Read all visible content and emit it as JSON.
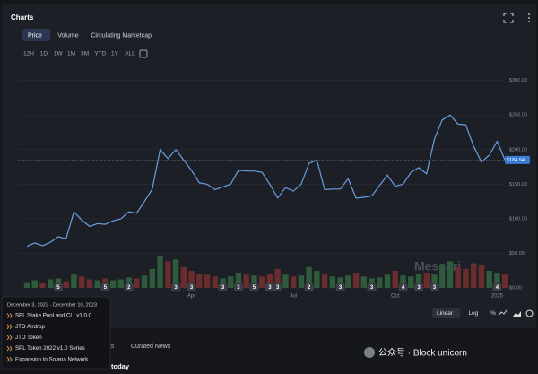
{
  "header": {
    "title": "Charts"
  },
  "tabs": [
    "Price",
    "Volume",
    "Circulating Marketcap"
  ],
  "ranges": [
    "12H",
    "1D",
    "1W",
    "1M",
    "3M",
    "YTD",
    "1Y",
    "ALL"
  ],
  "chart_data": {
    "type": "line",
    "categories": [
      null,
      null,
      null,
      null,
      null,
      null,
      null,
      null,
      null,
      null,
      null,
      null,
      null,
      null,
      null,
      null,
      null,
      null,
      null,
      null,
      null,
      "Apr",
      null,
      null,
      null,
      null,
      null,
      null,
      null,
      null,
      null,
      null,
      null,
      null,
      "Jul",
      null,
      null,
      null,
      null,
      null,
      null,
      null,
      null,
      null,
      null,
      null,
      null,
      "Oct",
      null,
      null,
      null,
      null,
      null,
      null,
      null,
      null,
      null,
      null,
      null,
      null,
      "2025",
      null
    ],
    "values": [
      60,
      65,
      61,
      66,
      74,
      71,
      110,
      98,
      89,
      93,
      92,
      97,
      100,
      110,
      108,
      125,
      143,
      200,
      187,
      200,
      185,
      170,
      152,
      150,
      142,
      146,
      150,
      170,
      169,
      169,
      167,
      150,
      130,
      145,
      140,
      150,
      180,
      185,
      142,
      143,
      143,
      158,
      130,
      131,
      133,
      148,
      163,
      147,
      150,
      167,
      174,
      165,
      215,
      243,
      250,
      237,
      236,
      205,
      182,
      192,
      212,
      184.94
    ],
    "color": "#6a9fe0",
    "volume": [
      6,
      8,
      5,
      9,
      10,
      7,
      14,
      12,
      9,
      8,
      10,
      8,
      9,
      11,
      10,
      13,
      20,
      34,
      28,
      30,
      22,
      18,
      15,
      14,
      12,
      10,
      12,
      16,
      14,
      13,
      12,
      15,
      20,
      14,
      12,
      13,
      22,
      18,
      14,
      12,
      11,
      13,
      16,
      12,
      10,
      11,
      14,
      18,
      13,
      12,
      15,
      16,
      14,
      24,
      28,
      22,
      20,
      26,
      24,
      18,
      16,
      14
    ],
    "volume_up_color": "#2f5a3c",
    "volume_down_color": "#6a2c2c",
    "events": [
      null,
      null,
      null,
      null,
      5,
      null,
      null,
      null,
      null,
      null,
      5,
      null,
      null,
      2,
      null,
      null,
      null,
      null,
      null,
      3,
      null,
      3,
      null,
      null,
      null,
      3,
      null,
      3,
      null,
      5,
      null,
      3,
      3,
      null,
      null,
      null,
      2,
      null,
      null,
      null,
      3,
      null,
      null,
      null,
      3,
      null,
      null,
      null,
      4,
      null,
      3,
      null,
      3,
      null,
      null,
      null,
      null,
      null,
      null,
      null,
      4,
      null
    ],
    "current_price": {
      "value": 184.94,
      "label": "$184.94"
    },
    "watermark": "Messari",
    "ylim": [
      0,
      310
    ],
    "yticks": [
      {
        "value": 0,
        "label": "$0.00"
      },
      {
        "value": 50,
        "label": "$50.00"
      },
      {
        "value": 100,
        "label": "$100.00"
      },
      {
        "value": 150,
        "label": "$150.00"
      },
      {
        "value": 200,
        "label": "$200.00"
      },
      {
        "value": 250,
        "label": "$250.00"
      },
      {
        "value": 300,
        "label": "$300.00"
      }
    ],
    "grid": true
  },
  "scale_buttons": [
    "Linear",
    "Log",
    "%"
  ],
  "tooltip": {
    "title": "December 3, 2023 - December 10, 2023",
    "items": [
      "SPL Stake Pool and CLI v1.0.0",
      "JTO Airdrop",
      "JTO Token",
      "SPL Token 2022 v1.0 Series",
      "Expansion to Solana Network"
    ]
  },
  "bottom_tabs": [
    "nts",
    "Curated News"
  ],
  "bottom_text": "today",
  "overlay_watermark": "公众号 · Block unicorn"
}
